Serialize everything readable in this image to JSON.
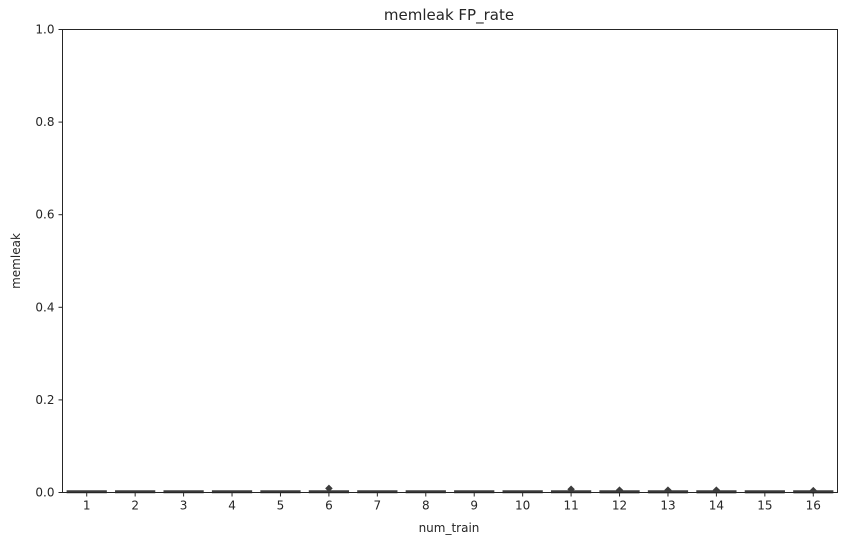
{
  "chart_data": {
    "type": "box",
    "title": "memleak FP_rate",
    "xlabel": "num_train",
    "ylabel": "memleak",
    "ylim": [
      0,
      1
    ],
    "yticks": [
      "0.0",
      "0.2",
      "0.4",
      "0.6",
      "0.8",
      "1.0"
    ],
    "categories": [
      "1",
      "2",
      "3",
      "4",
      "5",
      "6",
      "7",
      "8",
      "9",
      "10",
      "11",
      "12",
      "13",
      "14",
      "15",
      "16"
    ],
    "boxes": [
      {
        "category": "1",
        "q1": 0.0,
        "median": 0.001,
        "q3": 0.003,
        "whisker_low": 0.0,
        "whisker_high": 0.004,
        "outliers": []
      },
      {
        "category": "2",
        "q1": 0.0,
        "median": 0.001,
        "q3": 0.003,
        "whisker_low": 0.0,
        "whisker_high": 0.004,
        "outliers": []
      },
      {
        "category": "3",
        "q1": 0.0,
        "median": 0.001,
        "q3": 0.003,
        "whisker_low": 0.0,
        "whisker_high": 0.004,
        "outliers": []
      },
      {
        "category": "4",
        "q1": 0.0,
        "median": 0.001,
        "q3": 0.002,
        "whisker_low": 0.0,
        "whisker_high": 0.003,
        "outliers": []
      },
      {
        "category": "5",
        "q1": 0.0,
        "median": 0.001,
        "q3": 0.002,
        "whisker_low": 0.0,
        "whisker_high": 0.003,
        "outliers": []
      },
      {
        "category": "6",
        "q1": 0.0,
        "median": 0.001,
        "q3": 0.002,
        "whisker_low": 0.0,
        "whisker_high": 0.003,
        "outliers": [
          0.009
        ]
      },
      {
        "category": "7",
        "q1": 0.0,
        "median": 0.001,
        "q3": 0.002,
        "whisker_low": 0.0,
        "whisker_high": 0.003,
        "outliers": []
      },
      {
        "category": "8",
        "q1": 0.0,
        "median": 0.001,
        "q3": 0.002,
        "whisker_low": 0.0,
        "whisker_high": 0.003,
        "outliers": []
      },
      {
        "category": "9",
        "q1": 0.0,
        "median": 0.001,
        "q3": 0.002,
        "whisker_low": 0.0,
        "whisker_high": 0.003,
        "outliers": []
      },
      {
        "category": "10",
        "q1": 0.0,
        "median": 0.001,
        "q3": 0.002,
        "whisker_low": 0.0,
        "whisker_high": 0.003,
        "outliers": []
      },
      {
        "category": "11",
        "q1": 0.0,
        "median": 0.001,
        "q3": 0.002,
        "whisker_low": 0.0,
        "whisker_high": 0.003,
        "outliers": [
          0.007
        ]
      },
      {
        "category": "12",
        "q1": 0.0,
        "median": 0.0,
        "q3": 0.001,
        "whisker_low": 0.0,
        "whisker_high": 0.002,
        "outliers": [
          0.005
        ]
      },
      {
        "category": "13",
        "q1": 0.0,
        "median": 0.0,
        "q3": 0.001,
        "whisker_low": 0.0,
        "whisker_high": 0.002,
        "outliers": [
          0.005
        ]
      },
      {
        "category": "14",
        "q1": 0.0,
        "median": 0.0,
        "q3": 0.001,
        "whisker_low": 0.0,
        "whisker_high": 0.002,
        "outliers": [
          0.005
        ]
      },
      {
        "category": "15",
        "q1": 0.0,
        "median": 0.0,
        "q3": 0.001,
        "whisker_low": 0.0,
        "whisker_high": 0.001,
        "outliers": []
      },
      {
        "category": "16",
        "q1": 0.0,
        "median": 0.0,
        "q3": 0.001,
        "whisker_low": 0.0,
        "whisker_high": 0.001,
        "outliers": [
          0.004
        ]
      }
    ],
    "box_color": "#3d3d3d",
    "outlier_color": "#3d3d3d",
    "grid": false,
    "legend": "none"
  }
}
